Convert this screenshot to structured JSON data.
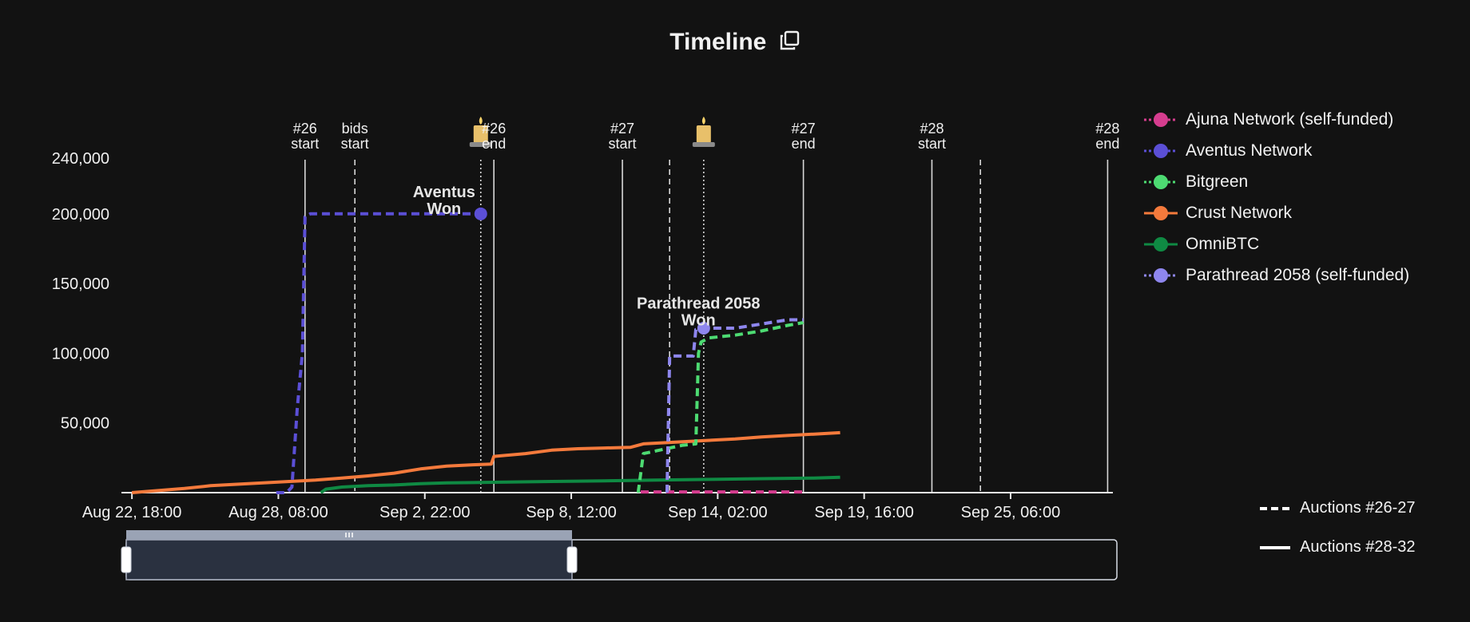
{
  "title": "Timeline",
  "colors": {
    "background": "#121212",
    "axis": "#e8e8e8",
    "marker_line": "#d8d8d8",
    "ajuna": "#d63d8f",
    "aventus": "#5b4fd6",
    "bitgreen": "#4ddb72",
    "crust": "#f47a3c",
    "omnibtc": "#0f8a43",
    "parathread": "#8e86ee"
  },
  "icons": {
    "title_action": "copy-icon",
    "candle": "candle-icon",
    "scroll_handle": "grip-icon"
  },
  "legend": [
    {
      "label": "Ajuna Network (self-funded)",
      "color": "#d63d8f",
      "dash": "dotted"
    },
    {
      "label": "Aventus Network",
      "color": "#5b4fd6",
      "dash": "dotted"
    },
    {
      "label": "Bitgreen",
      "color": "#4ddb72",
      "dash": "dotted"
    },
    {
      "label": "Crust Network",
      "color": "#f47a3c",
      "dash": "solid"
    },
    {
      "label": "OmniBTC",
      "color": "#0f8a43",
      "dash": "solid"
    },
    {
      "label": "Parathread 2058 (self-funded)",
      "color": "#8e86ee",
      "dash": "dotted"
    }
  ],
  "style_legend": [
    {
      "label": "Auctions #26-27",
      "dash": "dashed"
    },
    {
      "label": "Auctions #28-32",
      "dash": "solid"
    }
  ],
  "chart_data": {
    "type": "line",
    "title": "Timeline",
    "x_ticks": [
      {
        "label": "Aug 22, 18:00",
        "day": 0
      },
      {
        "label": "Aug 28, 08:00",
        "day": 5.583
      },
      {
        "label": "Sep 2, 22:00",
        "day": 11.167
      },
      {
        "label": "Sep 8, 12:00",
        "day": 16.75
      },
      {
        "label": "Sep 14, 02:00",
        "day": 22.333
      },
      {
        "label": "Sep 19, 16:00",
        "day": 27.917
      },
      {
        "label": "Sep 25, 06:00",
        "day": 33.5
      }
    ],
    "xlim": [
      -0.4,
      37.4
    ],
    "ylim": [
      0,
      240000
    ],
    "y_ticks": [
      {
        "label": "50,000",
        "value": 50000
      },
      {
        "label": "100,000",
        "value": 100000
      },
      {
        "label": "150,000",
        "value": 150000
      },
      {
        "label": "200,000",
        "value": 200000
      },
      {
        "label": "240,000",
        "value": 240000
      }
    ],
    "event_lines": [
      {
        "day": 6.6,
        "style": "solid",
        "label": [
          "#26",
          "start"
        ]
      },
      {
        "day": 8.5,
        "style": "dashed",
        "label": [
          "bids",
          "start"
        ]
      },
      {
        "day": 13.3,
        "style": "dotted",
        "label": [],
        "candle": true
      },
      {
        "day": 13.8,
        "style": "solid",
        "label": [
          "#26",
          "end"
        ]
      },
      {
        "day": 18.7,
        "style": "solid",
        "label": [
          "#27",
          "start"
        ]
      },
      {
        "day": 20.5,
        "style": "dashed",
        "label": []
      },
      {
        "day": 21.8,
        "style": "dotted",
        "label": [],
        "candle": true
      },
      {
        "day": 25.6,
        "style": "solid",
        "label": [
          "#27",
          "end"
        ]
      },
      {
        "day": 30.5,
        "style": "solid",
        "label": [
          "#28",
          "start"
        ]
      },
      {
        "day": 32.35,
        "style": "dashed",
        "label": []
      },
      {
        "day": 37.2,
        "style": "solid",
        "label": [
          "#28",
          "end"
        ]
      }
    ],
    "annotations": [
      {
        "lines": [
          "Aventus",
          "Won"
        ],
        "day": 11.9,
        "value": 212000
      },
      {
        "lines": [
          "Parathread 2058",
          "Won"
        ],
        "day": 21.6,
        "value": 132000
      }
    ],
    "series": [
      {
        "name": "Crust Network",
        "color": "#f47a3c",
        "style": "solid",
        "points": [
          [
            0,
            0
          ],
          [
            1,
            1500
          ],
          [
            2,
            3000
          ],
          [
            3,
            5000
          ],
          [
            4,
            6000
          ],
          [
            5,
            7000
          ],
          [
            6,
            8000
          ],
          [
            7,
            9000
          ],
          [
            8,
            10500
          ],
          [
            9,
            12000
          ],
          [
            10,
            14000
          ],
          [
            11,
            17000
          ],
          [
            12,
            19000
          ],
          [
            13,
            20000
          ],
          [
            13.7,
            20500
          ],
          [
            13.8,
            26000
          ],
          [
            15,
            28000
          ],
          [
            16,
            30500
          ],
          [
            17,
            31500
          ],
          [
            18,
            32000
          ],
          [
            19,
            32500
          ],
          [
            19.5,
            35000
          ],
          [
            20,
            35500
          ],
          [
            21,
            36500
          ],
          [
            22,
            37500
          ],
          [
            23,
            38500
          ],
          [
            24,
            40000
          ],
          [
            25,
            41000
          ],
          [
            26,
            42000
          ],
          [
            27,
            43000
          ]
        ]
      },
      {
        "name": "OmniBTC",
        "color": "#0f8a43",
        "style": "solid",
        "points": [
          [
            7.2,
            0
          ],
          [
            7.4,
            2500
          ],
          [
            8,
            4000
          ],
          [
            9,
            5000
          ],
          [
            10,
            5500
          ],
          [
            11,
            6500
          ],
          [
            12,
            7000
          ],
          [
            13,
            7200
          ],
          [
            14,
            7500
          ],
          [
            16,
            8000
          ],
          [
            18,
            8500
          ],
          [
            20,
            9000
          ],
          [
            22,
            9500
          ],
          [
            24,
            10000
          ],
          [
            26,
            10500
          ],
          [
            27,
            11000
          ]
        ]
      },
      {
        "name": "Ajuna Network (self-funded)",
        "color": "#d63d8f",
        "style": "dashed",
        "points": [
          [
            19.4,
            500
          ],
          [
            25.6,
            500
          ]
        ]
      },
      {
        "name": "Aventus Network",
        "color": "#5b4fd6",
        "style": "dashed",
        "points": [
          [
            5.5,
            0
          ],
          [
            5.9,
            0
          ],
          [
            6.1,
            4000
          ],
          [
            6.3,
            60000
          ],
          [
            6.5,
            100000
          ],
          [
            6.6,
            198000
          ],
          [
            6.8,
            200000
          ],
          [
            13.3,
            200000
          ]
        ]
      },
      {
        "name": "Bitgreen",
        "color": "#4ddb72",
        "style": "dashed",
        "points": [
          [
            19.3,
            0
          ],
          [
            19.5,
            28000
          ],
          [
            20,
            30000
          ],
          [
            20.5,
            32000
          ],
          [
            21,
            34000
          ],
          [
            21.5,
            35000
          ],
          [
            21.6,
            100000
          ],
          [
            21.7,
            108000
          ],
          [
            22,
            111000
          ],
          [
            23,
            113000
          ],
          [
            24,
            116000
          ],
          [
            25,
            120000
          ],
          [
            25.6,
            122000
          ]
        ]
      },
      {
        "name": "Parathread 2058 (self-funded)",
        "color": "#8e86ee",
        "style": "dashed",
        "points": [
          [
            20.4,
            0
          ],
          [
            20.5,
            98000
          ],
          [
            21.4,
            98000
          ],
          [
            21.5,
            117000
          ],
          [
            22,
            118000
          ],
          [
            23,
            118000
          ],
          [
            24,
            121000
          ],
          [
            25,
            124000
          ],
          [
            25.6,
            124000
          ]
        ]
      }
    ],
    "winner_markers": [
      {
        "series": "Aventus Network",
        "day": 13.3,
        "value": 200000
      },
      {
        "series": "Parathread 2058 (self-funded)",
        "day": 21.8,
        "value": 118000
      }
    ],
    "brush": {
      "start_fraction": 0.0,
      "end_fraction": 0.45
    }
  }
}
